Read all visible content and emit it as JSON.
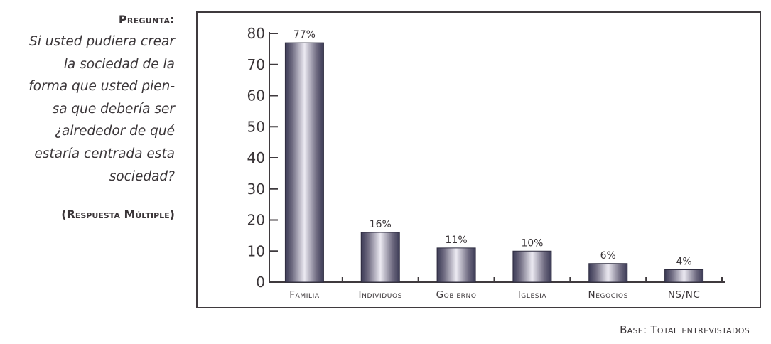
{
  "question": {
    "label": "Pregunta:",
    "lines": [
      "Si usted pudiera crear",
      "la sociedad de la",
      "forma que usted pien-",
      "sa que debería ser",
      "¿alrededor de qué",
      "estaría centrada esta",
      "sociedad?"
    ],
    "note": "(Respuesta Múltiple)"
  },
  "base_note": "Base: Total entrevistados",
  "chart_data": {
    "type": "bar",
    "categories": [
      "Familia",
      "Individuos",
      "Gobierno",
      "Iglesia",
      "Negocios",
      "NS/NC"
    ],
    "values": [
      77,
      16,
      11,
      10,
      6,
      4
    ],
    "value_labels": [
      "77%",
      "16%",
      "11%",
      "10%",
      "6%",
      "4%"
    ],
    "ylim": [
      0,
      80
    ],
    "yticks": [
      0,
      10,
      20,
      30,
      40,
      50,
      60,
      70,
      80
    ],
    "grid": false,
    "bar_color": "#6e6a80"
  }
}
